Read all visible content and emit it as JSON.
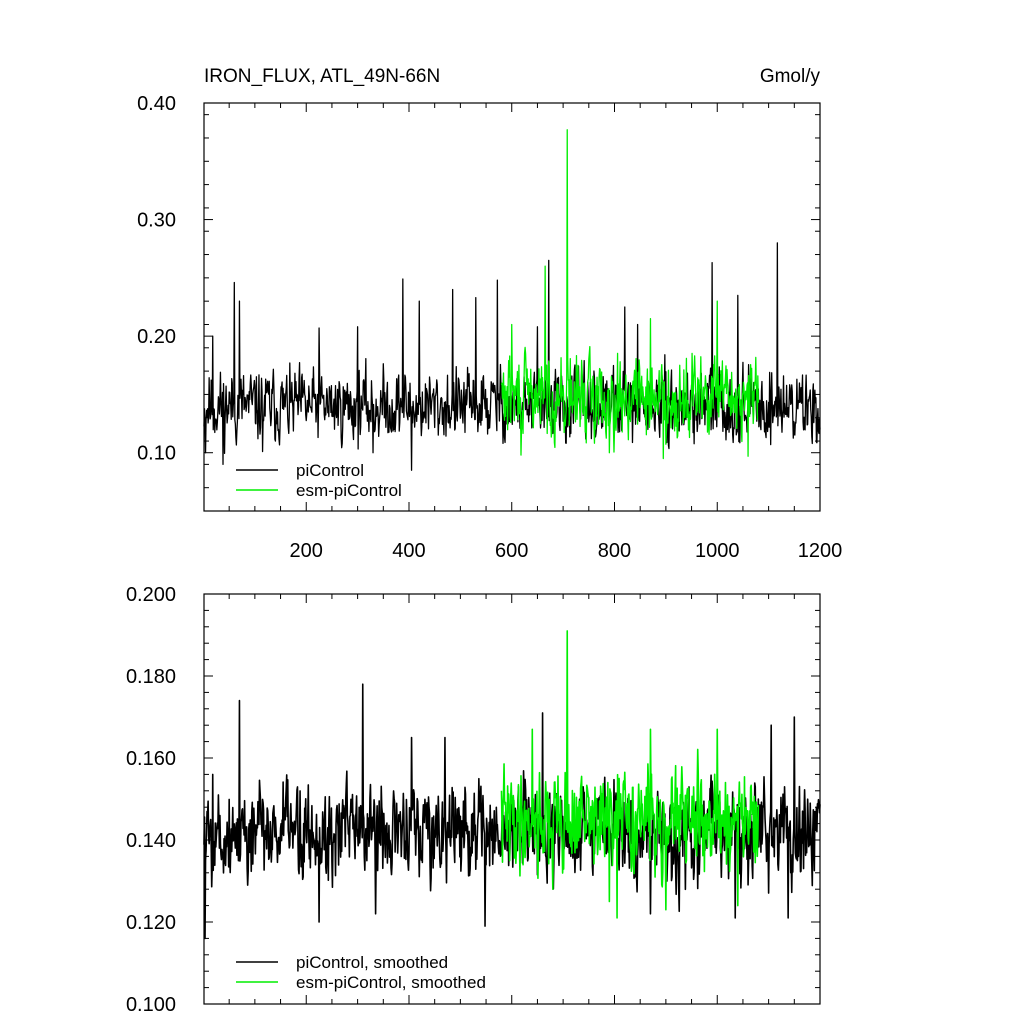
{
  "chart_data": [
    {
      "type": "line",
      "title": "IRON_FLUX, ATL_49N-66N",
      "units": "Gmol/y",
      "xlabel": "",
      "ylabel": "",
      "xlim": [
        1,
        1200
      ],
      "ylim": [
        0.05,
        0.4
      ],
      "x_ticks": [
        200,
        400,
        600,
        800,
        1000,
        1200
      ],
      "x_tick_labels": [
        "200",
        "400",
        "600",
        "800",
        "1000",
        "1200"
      ],
      "y_ticks": [
        0.1,
        0.2,
        0.3,
        0.4
      ],
      "y_tick_labels": [
        "0.10",
        "0.20",
        "0.30",
        "0.40"
      ],
      "grid": false,
      "legend_position": "bottom-left",
      "series": [
        {
          "name": "piControl",
          "color": "#000000",
          "x_start": 1,
          "x_end": 1200,
          "baseline": 0.14,
          "noise": 0.024,
          "seed": 11,
          "peaks": [
            [
              4,
              0.1
            ],
            [
              18,
              0.2
            ],
            [
              38,
              0.09
            ],
            [
              60,
              0.246
            ],
            [
              70,
              0.23
            ],
            [
              115,
              0.101
            ],
            [
              225,
              0.207
            ],
            [
              300,
              0.208
            ],
            [
              330,
              0.1
            ],
            [
              388,
              0.249
            ],
            [
              405,
              0.085
            ],
            [
              420,
              0.23
            ],
            [
              485,
              0.24
            ],
            [
              530,
              0.233
            ],
            [
              572,
              0.248
            ],
            [
              650,
              0.208
            ],
            [
              672,
              0.265
            ],
            [
              820,
              0.225
            ],
            [
              845,
              0.21
            ],
            [
              990,
              0.263
            ],
            [
              1040,
              0.235
            ],
            [
              1117,
              0.28
            ],
            [
              1200,
              0.12
            ]
          ]
        },
        {
          "name": "esm-piControl",
          "color": "#00ee00",
          "x_start": 580,
          "x_end": 1080,
          "baseline": 0.148,
          "noise": 0.027,
          "seed": 29,
          "peaks": [
            [
              600,
              0.21
            ],
            [
              618,
              0.098
            ],
            [
              665,
              0.26
            ],
            [
              708,
              0.377
            ],
            [
              790,
              0.1
            ],
            [
              870,
              0.215
            ],
            [
              895,
              0.095
            ],
            [
              1000,
              0.23
            ],
            [
              1060,
              0.097
            ]
          ]
        }
      ]
    },
    {
      "type": "line",
      "title": "",
      "xlabel": "",
      "ylabel": "",
      "xlim": [
        1,
        1200
      ],
      "ylim": [
        0.1,
        0.2
      ],
      "x_ticks": [
        200,
        400,
        600,
        800,
        1000,
        1200
      ],
      "x_tick_labels": [
        "",
        "",
        "",
        "",
        "",
        ""
      ],
      "y_ticks": [
        0.1,
        0.12,
        0.14,
        0.16,
        0.18,
        0.2
      ],
      "y_tick_labels": [
        "0.100",
        "0.120",
        "0.140",
        "0.160",
        "0.180",
        "0.200"
      ],
      "grid": false,
      "legend_position": "bottom-left",
      "series": [
        {
          "name": "piControl, smoothed",
          "color": "#000000",
          "x_start": 1,
          "x_end": 1200,
          "baseline": 0.142,
          "noise": 0.0095,
          "seed": 5,
          "peaks": [
            [
              3,
              0.116
            ],
            [
              18,
              0.156
            ],
            [
              70,
              0.174
            ],
            [
              90,
              0.137
            ],
            [
              225,
              0.12
            ],
            [
              310,
              0.178
            ],
            [
              335,
              0.122
            ],
            [
              405,
              0.165
            ],
            [
              470,
              0.165
            ],
            [
              548,
              0.119
            ],
            [
              660,
              0.171
            ],
            [
              870,
              0.122
            ],
            [
              1035,
              0.121
            ],
            [
              1080,
              0.15
            ],
            [
              1105,
              0.168
            ],
            [
              1138,
              0.121
            ],
            [
              1150,
              0.17
            ]
          ]
        },
        {
          "name": "esm-piControl, smoothed",
          "color": "#00ee00",
          "x_start": 580,
          "x_end": 1080,
          "baseline": 0.145,
          "noise": 0.0095,
          "seed": 41,
          "peaks": [
            [
              640,
              0.167
            ],
            [
              680,
              0.128
            ],
            [
              708,
              0.191
            ],
            [
              790,
              0.125
            ],
            [
              805,
              0.121
            ],
            [
              870,
              0.167
            ],
            [
              900,
              0.123
            ],
            [
              1000,
              0.167
            ],
            [
              1040,
              0.124
            ]
          ]
        }
      ]
    }
  ]
}
